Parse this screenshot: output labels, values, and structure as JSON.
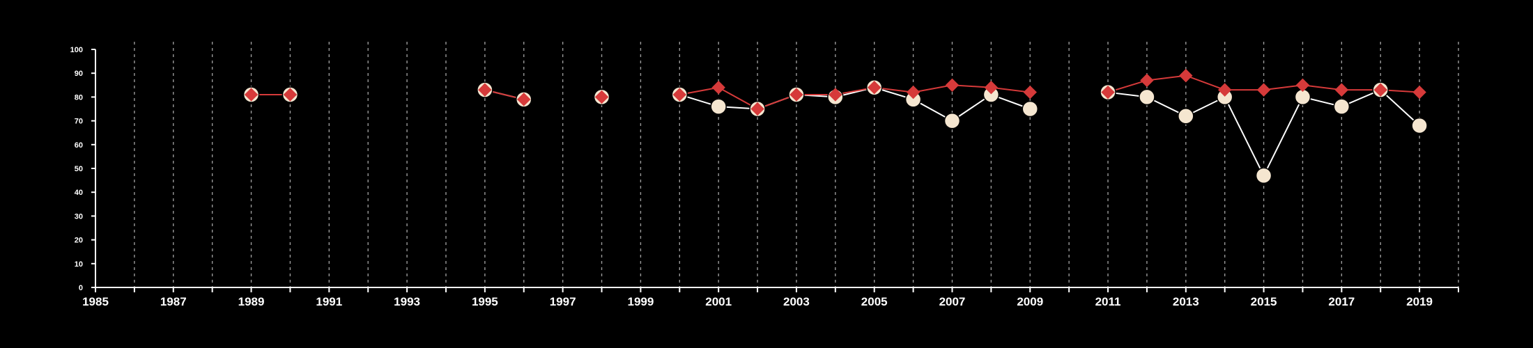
{
  "chart_data": {
    "type": "line",
    "title": "",
    "xlabel": "",
    "ylabel": "",
    "xlim": [
      1985,
      2020
    ],
    "ylim": [
      0,
      100
    ],
    "x_ticks": [
      "1985",
      "1987",
      "1989",
      "1991",
      "1993",
      "1995",
      "1997",
      "1999",
      "2001",
      "2003",
      "2005",
      "2007",
      "2009",
      "2011",
      "2013",
      "2015",
      "2017",
      "2019"
    ],
    "y_ticks": [
      "0",
      "10",
      "20",
      "30",
      "40",
      "50",
      "60",
      "70",
      "80",
      "90",
      "100"
    ],
    "grid": "vertical dashed at every year",
    "legend": "none",
    "colors": {
      "background": "#000000",
      "axis": "#ffffff",
      "grid": "#9a9a9a",
      "series_a": "#ffffff",
      "series_a_fill": "#f5e6d0",
      "series_b": "#d63a3a"
    },
    "series": [
      {
        "marker": "circle",
        "points": [
          [
            1989,
            81
          ],
          [
            1990,
            81
          ],
          [
            1995,
            83
          ],
          [
            1996,
            79
          ],
          [
            1998,
            80
          ],
          [
            2000,
            81
          ],
          [
            2001,
            76
          ],
          [
            2002,
            75
          ],
          [
            2003,
            81
          ],
          [
            2004,
            80
          ],
          [
            2005,
            84
          ],
          [
            2006,
            79
          ],
          [
            2007,
            70
          ],
          [
            2008,
            81
          ],
          [
            2009,
            75
          ],
          [
            2011,
            82
          ],
          [
            2012,
            80
          ],
          [
            2013,
            72
          ],
          [
            2014,
            80
          ],
          [
            2015,
            47
          ],
          [
            2016,
            80
          ],
          [
            2017,
            76
          ],
          [
            2018,
            83
          ],
          [
            2019,
            68
          ]
        ]
      },
      {
        "marker": "diamond",
        "points": [
          [
            1989,
            81
          ],
          [
            1990,
            81
          ],
          [
            1995,
            83
          ],
          [
            1996,
            79
          ],
          [
            1998,
            80
          ],
          [
            2000,
            81
          ],
          [
            2001,
            84
          ],
          [
            2002,
            75
          ],
          [
            2003,
            81
          ],
          [
            2004,
            81
          ],
          [
            2005,
            84
          ],
          [
            2006,
            82
          ],
          [
            2007,
            85
          ],
          [
            2008,
            84
          ],
          [
            2009,
            82
          ],
          [
            2011,
            82
          ],
          [
            2012,
            87
          ],
          [
            2013,
            89
          ],
          [
            2014,
            83
          ],
          [
            2015,
            83
          ],
          [
            2016,
            85
          ],
          [
            2017,
            83
          ],
          [
            2018,
            83
          ],
          [
            2019,
            82
          ]
        ]
      }
    ]
  }
}
